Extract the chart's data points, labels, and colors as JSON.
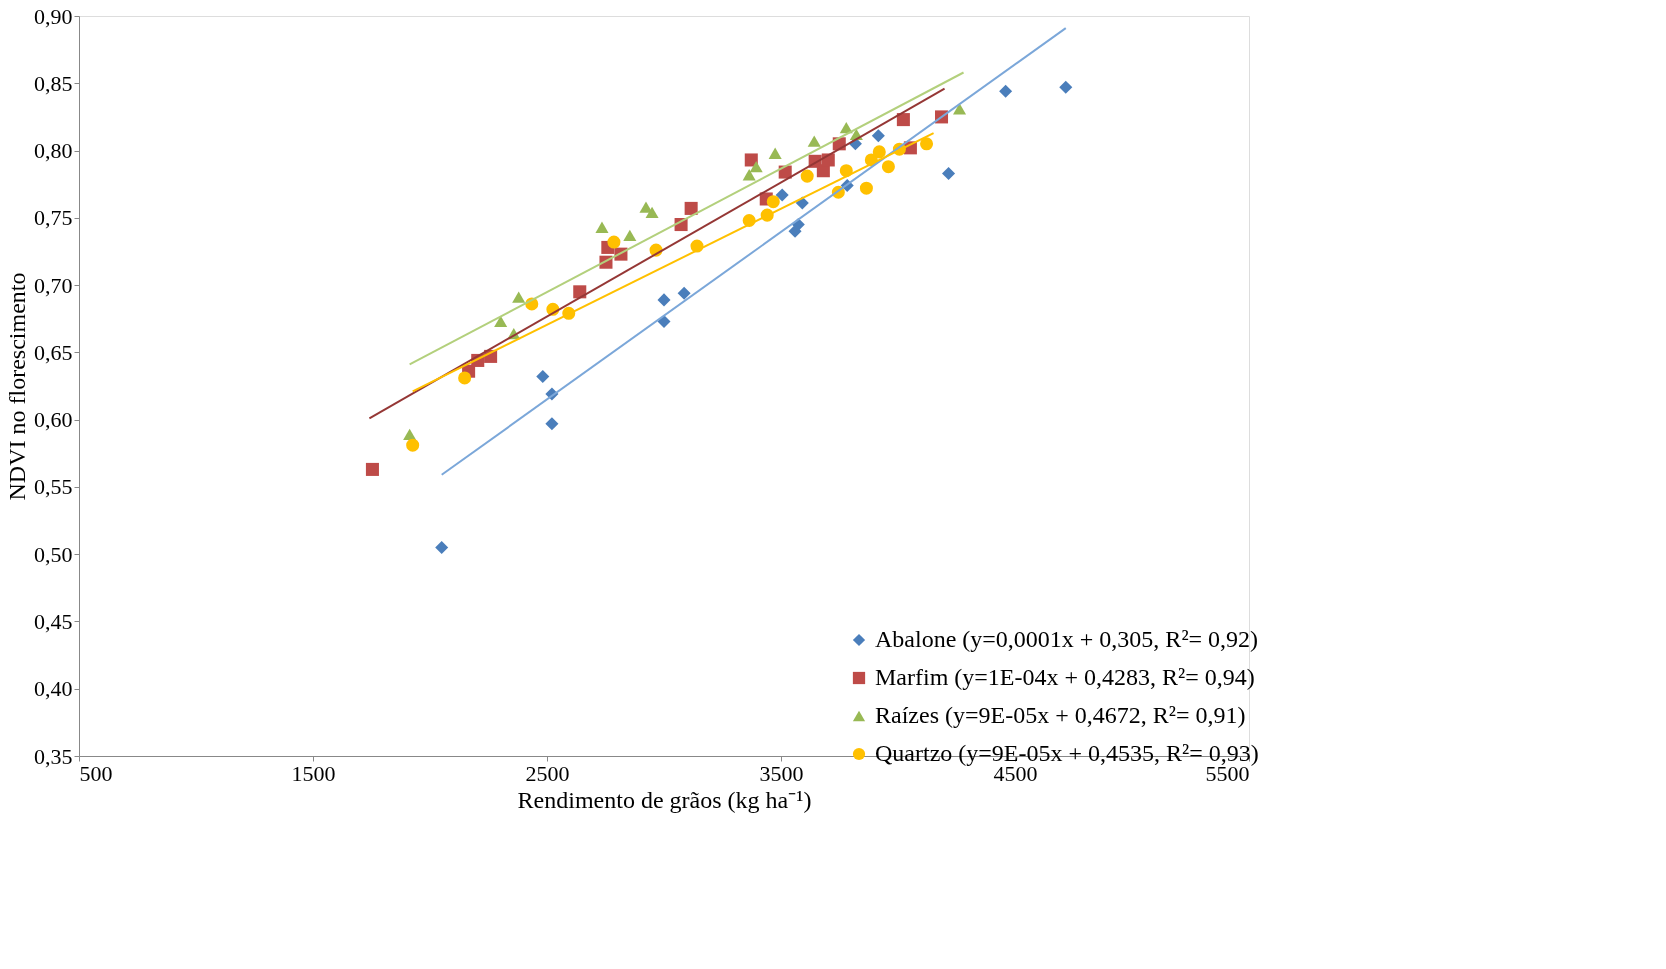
{
  "chart_data": {
    "type": "scatter",
    "xlabel": "Rendimento de grãos (kg ha⁻¹)",
    "ylabel": "NDVI no florescimento",
    "xlim": [
      500,
      5500
    ],
    "xticks": [
      500,
      1500,
      2500,
      3500,
      4500,
      5500
    ],
    "ylim": [
      0.35,
      0.9
    ],
    "yticks": [
      {
        "value": 0.35,
        "label": "0,35"
      },
      {
        "value": 0.4,
        "label": "0,40"
      },
      {
        "value": 0.45,
        "label": "0,45"
      },
      {
        "value": 0.5,
        "label": "0,50"
      },
      {
        "value": 0.55,
        "label": "0,55"
      },
      {
        "value": 0.6,
        "label": "0,60"
      },
      {
        "value": 0.65,
        "label": "0,65"
      },
      {
        "value": 0.7,
        "label": "0,70"
      },
      {
        "value": 0.75,
        "label": "0,75"
      },
      {
        "value": 0.8,
        "label": "0,80"
      },
      {
        "value": 0.85,
        "label": "0,85"
      },
      {
        "value": 0.9,
        "label": "0,90"
      }
    ],
    "grid": false,
    "legend": "bottom right",
    "series": [
      {
        "name": "Abalone (y=0,0001x + 0,305, R²= 0,92)",
        "color": "#4a7ebb",
        "marker": "diamond",
        "x": [
          2050,
          2482,
          2521,
          2521,
          3000,
          3000,
          3086,
          3505,
          3574,
          3560,
          3591,
          3783,
          3818,
          3916,
          4216,
          4460,
          4717
        ],
        "values": [
          0.505,
          0.632,
          0.619,
          0.597,
          0.689,
          0.673,
          0.694,
          0.767,
          0.745,
          0.74,
          0.761,
          0.774,
          0.805,
          0.811,
          0.783,
          0.844,
          0.847
        ]
      },
      {
        "name": "Marfim (y=1E-04x + 0,4283, R²= 0,94)",
        "color": "#be4b48",
        "marker": "square",
        "x": [
          1754,
          2165,
          2204,
          2259,
          2640,
          2752,
          2760,
          2816,
          3073,
          3116,
          3373,
          3437,
          3518,
          3646,
          3681,
          3702,
          3749,
          4023,
          4053,
          4186
        ],
        "values": [
          0.563,
          0.636,
          0.644,
          0.647,
          0.695,
          0.717,
          0.728,
          0.723,
          0.745,
          0.757,
          0.793,
          0.764,
          0.784,
          0.792,
          0.785,
          0.793,
          0.805,
          0.823,
          0.802,
          0.825
        ]
      },
      {
        "name": "Raízes (y=9E-05x + 0,4672, R²= 0,91)",
        "color": "#98b954",
        "marker": "triangle",
        "x": [
          1913,
          2302,
          2358,
          2379,
          2735,
          2854,
          2923,
          2949,
          3364,
          3394,
          3475,
          3642,
          3779,
          3822,
          4263
        ],
        "values": [
          0.589,
          0.673,
          0.664,
          0.691,
          0.743,
          0.737,
          0.758,
          0.754,
          0.782,
          0.788,
          0.798,
          0.807,
          0.817,
          0.812,
          0.831
        ]
      },
      {
        "name": "Quartzo (y=9E-05x + 0,4535, R²= 0,93)",
        "color": "#ffc000",
        "marker": "circle",
        "x": [
          1926,
          2148,
          2435,
          2525,
          2593,
          2786,
          2966,
          3141,
          3364,
          3441,
          3467,
          3612,
          3745,
          3779,
          3865,
          3886,
          3920,
          3959,
          4006,
          4122
        ],
        "values": [
          0.581,
          0.631,
          0.686,
          0.682,
          0.679,
          0.732,
          0.726,
          0.729,
          0.748,
          0.752,
          0.762,
          0.781,
          0.769,
          0.785,
          0.772,
          0.793,
          0.799,
          0.788,
          0.801,
          0.805
        ]
      },
      {
        "type": "line",
        "color": "#7ba7d9",
        "marker": "none",
        "x": [
          2050,
          4717
        ],
        "values": [
          0.559,
          0.891
        ]
      },
      {
        "type": "line",
        "color": "#953735",
        "marker": "none",
        "x": [
          1741,
          4199
        ],
        "values": [
          0.601,
          0.846
        ]
      },
      {
        "type": "line",
        "color": "#b3d07c",
        "marker": "none",
        "x": [
          1913,
          4280
        ],
        "values": [
          0.641,
          0.858
        ]
      },
      {
        "type": "line",
        "color": "#ffc000",
        "marker": "none",
        "x": [
          1926,
          4152
        ],
        "values": [
          0.621,
          0.813
        ]
      }
    ]
  }
}
